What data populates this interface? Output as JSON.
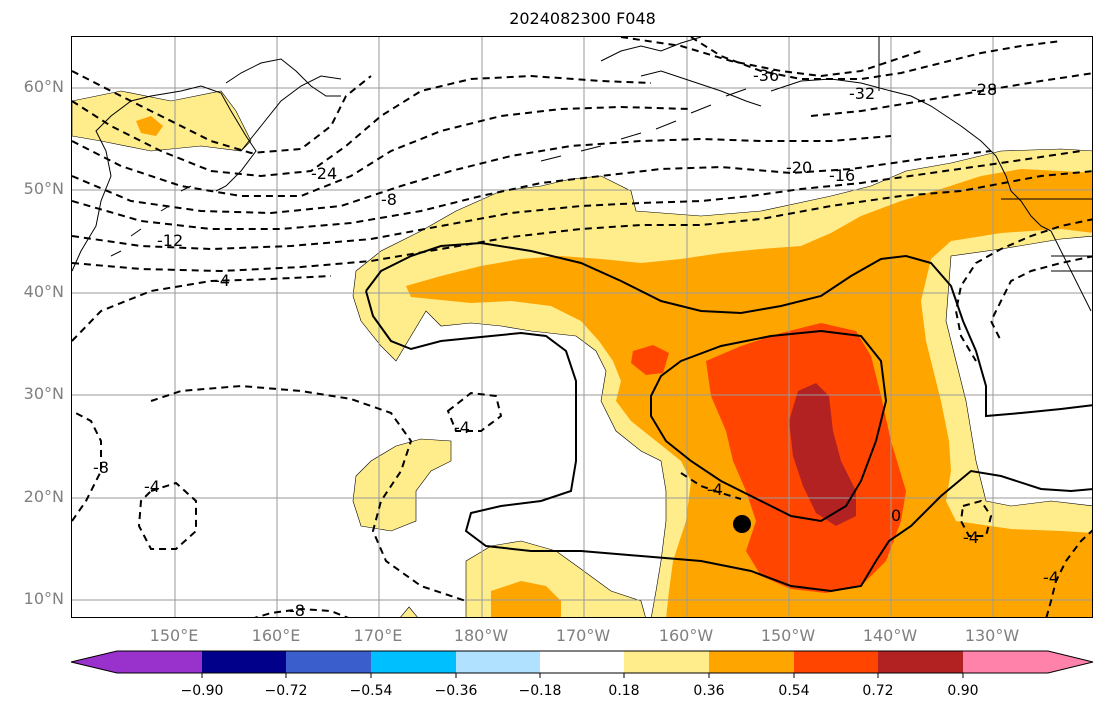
{
  "title": "2024082300 F048",
  "lat_ticks": [
    "60°N",
    "50°N",
    "40°N",
    "30°N",
    "20°N",
    "10°N"
  ],
  "lon_ticks": [
    "150°E",
    "160°E",
    "170°E",
    "180°W",
    "170°W",
    "160°W",
    "150°W",
    "140°W",
    "130°W"
  ],
  "colorbar": {
    "colors": [
      "#9932cc",
      "#00008b",
      "#3a5fcd",
      "#00bfff",
      "#b0e2ff",
      "#ffffff",
      "#ffec8b",
      "#ffa500",
      "#ff4500",
      "#b22222",
      "#ff82ab"
    ],
    "tick_labels": [
      "−0.90",
      "−0.72",
      "−0.54",
      "−0.36",
      "−0.18",
      "0.18",
      "0.36",
      "0.54",
      "0.72",
      "0.90"
    ]
  },
  "contour_labels": [
    "-36",
    "-32",
    "-28",
    "-24",
    "-20",
    "-16",
    "-12",
    "-8",
    "-4",
    "-4",
    "-4",
    "-4",
    "-4",
    "-8",
    "-8",
    "-4",
    "0"
  ],
  "marker": {
    "name": "storm-center",
    "color": "#000000"
  }
}
